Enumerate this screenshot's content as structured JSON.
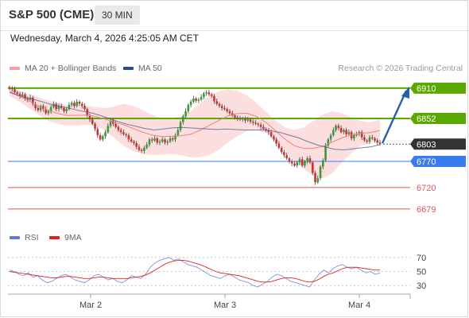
{
  "header": {
    "title": "S&P 500 (CME)",
    "timeframe": "30 MIN"
  },
  "timestamp": "Wednesday, March 4, 2026 4:25:05 AM CET",
  "legend": {
    "ma20": {
      "label": "MA 20 + Bollinger Bands",
      "color": "#f4a0a0"
    },
    "ma50": {
      "label": "MA 50",
      "color": "#2c4f86"
    },
    "credit": "Research © 2026 Trading Central"
  },
  "rsi_legend": {
    "rsi": {
      "label": "RSI",
      "color": "#5b7fd0"
    },
    "ma9": {
      "label": "9MA",
      "color": "#e02020"
    }
  },
  "colors": {
    "bull": "#3a9a3a",
    "bear": "#cc3333",
    "resistance": "#5aa800",
    "support": "#3a7cf0",
    "target": "#e05555",
    "current": "#333333",
    "arrow": "#2a5fa8"
  },
  "chart_data": {
    "type": "candlestick",
    "ylim": [
      6650,
      6925
    ],
    "x_ticks": [
      "Mar 2",
      "Mar 3",
      "Mar 4"
    ],
    "ohlc_close": [
      6910,
      6908,
      6902,
      6899,
      6895,
      6898,
      6890,
      6888,
      6892,
      6880,
      6872,
      6868,
      6876,
      6870,
      6862,
      6866,
      6874,
      6880,
      6870,
      6876,
      6872,
      6866,
      6870,
      6878,
      6882,
      6876,
      6884,
      6880,
      6876,
      6870,
      6858,
      6850,
      6842,
      6832,
      6820,
      6812,
      6818,
      6826,
      6838,
      6848,
      6842,
      6836,
      6830,
      6826,
      6822,
      6820,
      6812,
      6808,
      6805,
      6798,
      6792,
      6790,
      6796,
      6802,
      6812,
      6810,
      6814,
      6806,
      6808,
      6812,
      6806,
      6808,
      6814,
      6812,
      6820,
      6830,
      6845,
      6856,
      6866,
      6878,
      6884,
      6890,
      6886,
      6888,
      6893,
      6900,
      6902,
      6898,
      6895,
      6885,
      6880,
      6876,
      6872,
      6870,
      6866,
      6862,
      6858,
      6854,
      6852,
      6850,
      6852,
      6848,
      6850,
      6846,
      6844,
      6842,
      6840,
      6836,
      6832,
      6830,
      6826,
      6818,
      6812,
      6804,
      6796,
      6788,
      6782,
      6776,
      6770,
      6766,
      6762,
      6768,
      6774,
      6762,
      6770,
      6776,
      6768,
      6748,
      6730,
      6738,
      6760,
      6772,
      6800,
      6812,
      6820,
      6830,
      6838,
      6834,
      6826,
      6830,
      6822,
      6826,
      6814,
      6820,
      6822,
      6826,
      6816,
      6810,
      6808,
      6816,
      6814,
      6810,
      6806,
      6803
    ],
    "ma50": [
      6902,
      6896,
      6891,
      6887,
      6882,
      6877,
      6874,
      6870,
      6866,
      6863,
      6858,
      6852,
      6846,
      6841,
      6837,
      6833,
      6830,
      6832,
      6834,
      6835,
      6834,
      6833,
      6832,
      6831,
      6832,
      6831,
      6830,
      6830,
      6830,
      6828,
      6825,
      6820,
      6815,
      6808,
      6802,
      6797,
      6793,
      6792,
      6794,
      6796,
      6798,
      6802
    ],
    "bb_upper": [
      6912,
      6905,
      6900,
      6893,
      6887,
      6882,
      6878,
      6878,
      6877,
      6874,
      6872,
      6875,
      6880,
      6876,
      6868,
      6859,
      6852,
      6852,
      6856,
      6865,
      6880,
      6895,
      6904,
      6908,
      6905,
      6896,
      6882,
      6865,
      6848,
      6835,
      6830,
      6835,
      6848,
      6860,
      6866,
      6862,
      6855,
      6847,
      6845,
      6850
    ],
    "bb_lower": [
      6895,
      6885,
      6872,
      6860,
      6848,
      6842,
      6838,
      6838,
      6840,
      6838,
      6830,
      6815,
      6800,
      6790,
      6784,
      6782,
      6783,
      6784,
      6782,
      6778,
      6778,
      6782,
      6792,
      6806,
      6818,
      6828,
      6830,
      6824,
      6810,
      6790,
      6770,
      6755,
      6742,
      6738,
      6748,
      6768,
      6786,
      6800,
      6805,
      6808
    ],
    "levels": [
      {
        "value": 6910,
        "label": "6910",
        "kind": "resistance"
      },
      {
        "value": 6852,
        "label": "6852",
        "kind": "resistance"
      },
      {
        "value": 6803,
        "label": "6803",
        "kind": "current"
      },
      {
        "value": 6770,
        "label": "6770",
        "kind": "support"
      },
      {
        "value": 6720,
        "label": "6720",
        "kind": "target"
      },
      {
        "value": 6679,
        "label": "6679",
        "kind": "target"
      }
    ],
    "rsi": {
      "ylim": [
        20,
        80
      ],
      "levels": [
        70,
        50,
        30
      ],
      "rsi_values": [
        52,
        50,
        46,
        44,
        48,
        42,
        44,
        38,
        34,
        36,
        40,
        44,
        46,
        42,
        38,
        36,
        34,
        38,
        44,
        46,
        42,
        38,
        40,
        36,
        34,
        38,
        44,
        42,
        40,
        46,
        56,
        62,
        66,
        68,
        70,
        66,
        68,
        64,
        60,
        58,
        56,
        52,
        48,
        44,
        42,
        40,
        44,
        46,
        42,
        38,
        36,
        34,
        30,
        28,
        32,
        36,
        42,
        46,
        44,
        40,
        36,
        34,
        32,
        30,
        28,
        38,
        46,
        52,
        48,
        54,
        58,
        60,
        56,
        54,
        56,
        52,
        48,
        50,
        46,
        48
      ],
      "ma9_values": [
        50,
        49,
        48,
        47,
        46,
        45,
        44,
        43,
        42,
        41,
        41,
        42,
        43,
        43,
        42,
        41,
        40,
        40,
        41,
        42,
        42,
        41,
        40,
        40,
        40,
        40,
        41,
        42,
        43,
        45,
        48,
        52,
        56,
        60,
        63,
        65,
        66,
        66,
        65,
        63,
        61,
        59,
        56,
        53,
        50,
        48,
        47,
        46,
        45,
        44,
        42,
        40,
        38,
        36,
        35,
        35,
        36,
        38,
        40,
        41,
        41,
        40,
        38,
        36,
        35,
        36,
        39,
        43,
        46,
        48,
        51,
        54,
        56,
        56,
        56,
        55,
        54,
        53,
        52,
        52
      ]
    }
  }
}
